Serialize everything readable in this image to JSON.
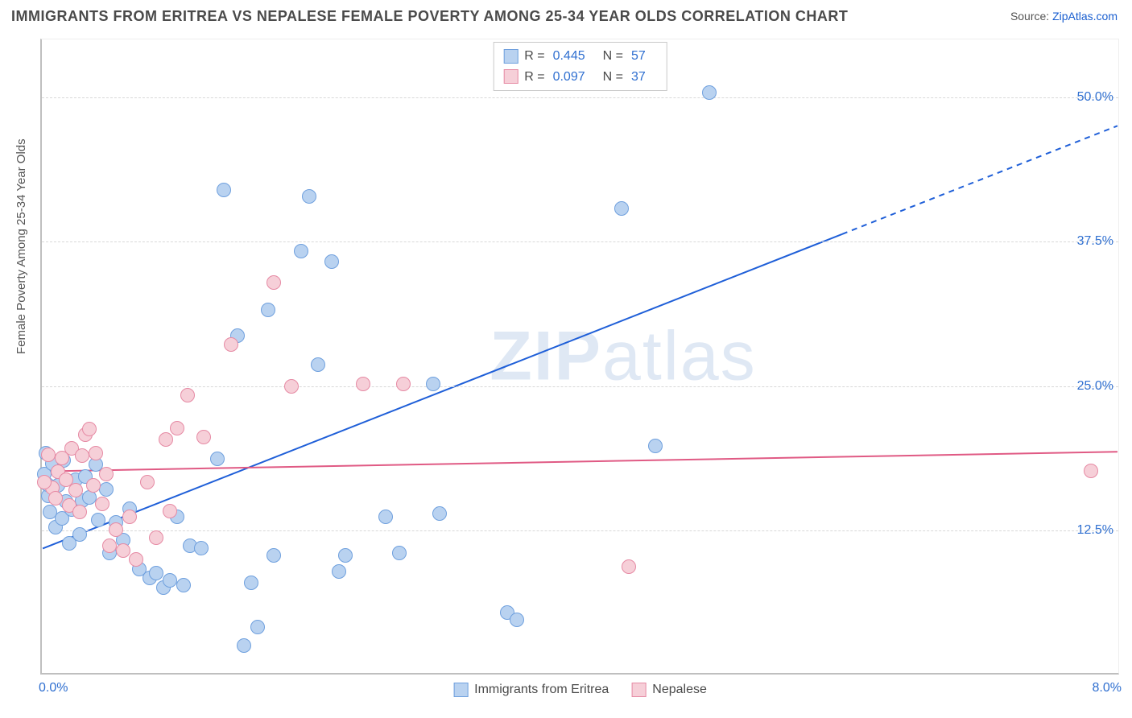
{
  "title": "IMMIGRANTS FROM ERITREA VS NEPALESE FEMALE POVERTY AMONG 25-34 YEAR OLDS CORRELATION CHART",
  "source_label": "Source: ",
  "source_link": "ZipAtlas.com",
  "ylabel": "Female Poverty Among 25-34 Year Olds",
  "watermark": "ZIPatlas",
  "chart": {
    "type": "scatter",
    "background_color": "#ffffff",
    "grid_color": "#d8d8d8",
    "axis_color": "#bfbfbf",
    "xlim": [
      0.0,
      8.0
    ],
    "ylim": [
      0.0,
      55.0
    ],
    "y_ticks": [
      12.5,
      25.0,
      37.5,
      50.0
    ],
    "y_tick_labels": [
      "12.5%",
      "25.0%",
      "37.5%",
      "50.0%"
    ],
    "x_tick_min": {
      "value": 0.0,
      "label": "0.0%"
    },
    "x_tick_max": {
      "value": 8.0,
      "label": "8.0%"
    },
    "marker_radius": 9,
    "marker_stroke_width": 1.5,
    "series": [
      {
        "name": "Immigrants from Eritrea",
        "fill": "#b9d2f0",
        "stroke": "#6fa0de",
        "R": "0.445",
        "N": "57",
        "trend": {
          "y_at_xmin": 10.8,
          "y_at_xmax": 47.5,
          "solid_until_x": 5.95,
          "color": "#1f5fd8",
          "width": 2
        },
        "points": [
          [
            0.02,
            17.2
          ],
          [
            0.05,
            15.3
          ],
          [
            0.06,
            13.9
          ],
          [
            0.08,
            18.1
          ],
          [
            0.1,
            12.6
          ],
          [
            0.12,
            16.2
          ],
          [
            0.15,
            13.4
          ],
          [
            0.16,
            18.4
          ],
          [
            0.18,
            14.8
          ],
          [
            0.2,
            11.2
          ],
          [
            0.22,
            14.1
          ],
          [
            0.25,
            16.7
          ],
          [
            0.28,
            12.0
          ],
          [
            0.3,
            14.9
          ],
          [
            0.32,
            17.0
          ],
          [
            0.35,
            15.2
          ],
          [
            0.4,
            18.0
          ],
          [
            0.42,
            13.2
          ],
          [
            0.48,
            15.9
          ],
          [
            0.5,
            10.4
          ],
          [
            0.55,
            13.0
          ],
          [
            0.6,
            11.5
          ],
          [
            0.65,
            14.2
          ],
          [
            0.72,
            9.0
          ],
          [
            0.8,
            8.2
          ],
          [
            0.85,
            8.6
          ],
          [
            0.9,
            7.4
          ],
          [
            0.95,
            8.0
          ],
          [
            1.0,
            13.5
          ],
          [
            1.05,
            7.6
          ],
          [
            1.1,
            11.0
          ],
          [
            1.18,
            10.8
          ],
          [
            1.3,
            18.5
          ],
          [
            1.35,
            41.8
          ],
          [
            1.45,
            29.2
          ],
          [
            1.5,
            2.4
          ],
          [
            1.55,
            7.8
          ],
          [
            1.6,
            4.0
          ],
          [
            1.68,
            31.4
          ],
          [
            1.72,
            10.2
          ],
          [
            1.92,
            36.5
          ],
          [
            1.98,
            41.2
          ],
          [
            2.05,
            26.7
          ],
          [
            2.15,
            35.6
          ],
          [
            2.2,
            8.8
          ],
          [
            2.25,
            10.2
          ],
          [
            2.55,
            13.5
          ],
          [
            2.65,
            10.4
          ],
          [
            2.9,
            25.0
          ],
          [
            2.95,
            13.8
          ],
          [
            3.45,
            5.2
          ],
          [
            3.52,
            4.6
          ],
          [
            4.3,
            40.2
          ],
          [
            4.55,
            19.6
          ],
          [
            4.95,
            50.2
          ],
          [
            0.03,
            19.0
          ],
          [
            0.04,
            16.3
          ]
        ]
      },
      {
        "name": "Nepalese",
        "fill": "#f6cfd8",
        "stroke": "#e68aa4",
        "R": "0.097",
        "N": "37",
        "trend": {
          "y_at_xmin": 17.5,
          "y_at_xmax": 19.2,
          "solid_until_x": 8.0,
          "color": "#e05a84",
          "width": 2
        },
        "points": [
          [
            0.05,
            18.9
          ],
          [
            0.08,
            16.0
          ],
          [
            0.1,
            15.1
          ],
          [
            0.12,
            17.4
          ],
          [
            0.15,
            18.6
          ],
          [
            0.18,
            16.7
          ],
          [
            0.2,
            14.5
          ],
          [
            0.22,
            19.4
          ],
          [
            0.25,
            15.8
          ],
          [
            0.28,
            13.9
          ],
          [
            0.32,
            20.6
          ],
          [
            0.35,
            21.1
          ],
          [
            0.38,
            16.2
          ],
          [
            0.4,
            19.0
          ],
          [
            0.45,
            14.6
          ],
          [
            0.5,
            11.0
          ],
          [
            0.55,
            12.4
          ],
          [
            0.6,
            10.6
          ],
          [
            0.65,
            13.5
          ],
          [
            0.7,
            9.8
          ],
          [
            0.78,
            16.5
          ],
          [
            0.85,
            11.7
          ],
          [
            0.92,
            20.2
          ],
          [
            1.0,
            21.2
          ],
          [
            1.08,
            24.0
          ],
          [
            1.2,
            20.4
          ],
          [
            1.4,
            28.4
          ],
          [
            1.72,
            33.8
          ],
          [
            1.85,
            24.8
          ],
          [
            2.38,
            25.0
          ],
          [
            2.68,
            25.0
          ],
          [
            4.35,
            9.2
          ],
          [
            7.78,
            17.5
          ],
          [
            0.3,
            18.8
          ],
          [
            0.48,
            17.2
          ],
          [
            0.95,
            14.0
          ],
          [
            0.02,
            16.5
          ]
        ]
      }
    ],
    "legend_top": {
      "R_label": "R =",
      "N_label": "N ="
    }
  }
}
